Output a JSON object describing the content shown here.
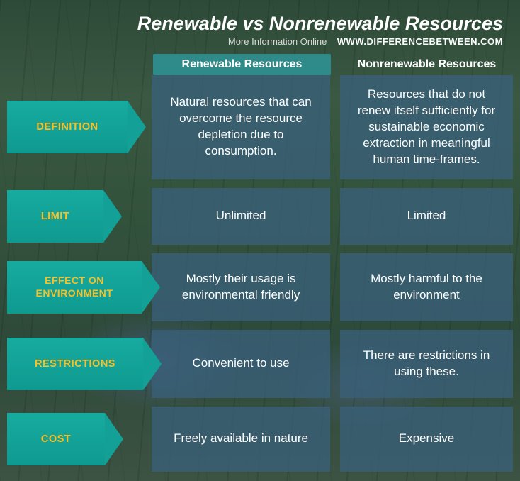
{
  "title": "Renewable vs Nonrenewable Resources",
  "title_fontsize": 27,
  "subtitle": {
    "more": "More Information  Online",
    "site": "WWW.DIFFERENCEBETWEEN.COM"
  },
  "colors": {
    "label_bg": "#13a197",
    "label_text": "#fbbf24",
    "header_bg": "#2f8a8a",
    "cell_bg": "rgba(58,96,122,0.78)",
    "cell_text": "#ffffff",
    "page_bg": "#2e4a3a"
  },
  "columns": [
    {
      "key": "renewable",
      "label": "Renewable Resources"
    },
    {
      "key": "nonrenewable",
      "label": "Nonrenewable Resources"
    }
  ],
  "rows": [
    {
      "label": "DEFINITION",
      "renewable": "Natural resources that can overcome the resource depletion due to consumption.",
      "nonrenewable": "Resources that do not renew itself sufficiently for sustainable economic extraction in meaningful human time-frames."
    },
    {
      "label": "LIMIT",
      "renewable": "Unlimited",
      "nonrenewable": "Limited"
    },
    {
      "label": "EFFECT ON ENVIRONMENT",
      "renewable": "Mostly their usage is environmental friendly",
      "nonrenewable": "Mostly harmful to the environment"
    },
    {
      "label": "RESTRICTIONS",
      "renewable": "Convenient to use",
      "nonrenewable": "There are restrictions in using these."
    },
    {
      "label": "COST",
      "renewable": "Freely available in nature",
      "nonrenewable": "Expensive"
    }
  ]
}
